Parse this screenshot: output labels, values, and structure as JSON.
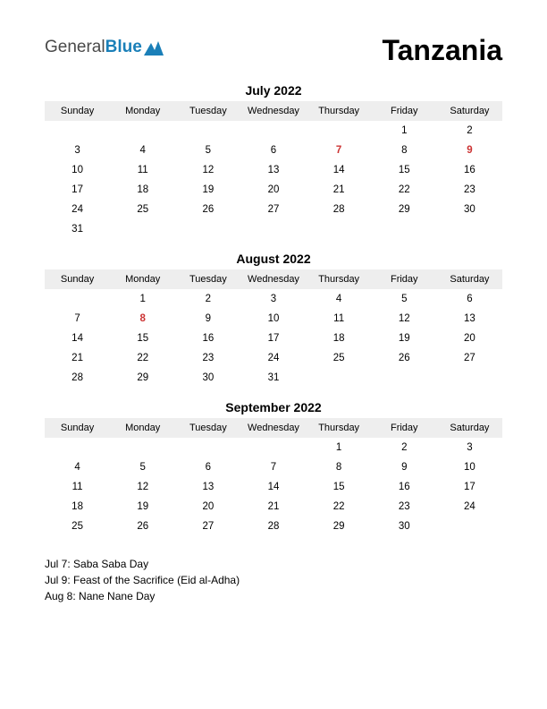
{
  "logo": {
    "part1": "General",
    "part2": "Blue"
  },
  "country": "Tanzania",
  "day_headers": [
    "Sunday",
    "Monday",
    "Tuesday",
    "Wednesday",
    "Thursday",
    "Friday",
    "Saturday"
  ],
  "months": [
    {
      "title": "July 2022",
      "weeks": [
        [
          {
            "d": ""
          },
          {
            "d": ""
          },
          {
            "d": ""
          },
          {
            "d": ""
          },
          {
            "d": ""
          },
          {
            "d": "1"
          },
          {
            "d": "2"
          }
        ],
        [
          {
            "d": "3"
          },
          {
            "d": "4"
          },
          {
            "d": "5"
          },
          {
            "d": "6"
          },
          {
            "d": "7",
            "h": true
          },
          {
            "d": "8"
          },
          {
            "d": "9",
            "h": true
          }
        ],
        [
          {
            "d": "10"
          },
          {
            "d": "11"
          },
          {
            "d": "12"
          },
          {
            "d": "13"
          },
          {
            "d": "14"
          },
          {
            "d": "15"
          },
          {
            "d": "16"
          }
        ],
        [
          {
            "d": "17"
          },
          {
            "d": "18"
          },
          {
            "d": "19"
          },
          {
            "d": "20"
          },
          {
            "d": "21"
          },
          {
            "d": "22"
          },
          {
            "d": "23"
          }
        ],
        [
          {
            "d": "24"
          },
          {
            "d": "25"
          },
          {
            "d": "26"
          },
          {
            "d": "27"
          },
          {
            "d": "28"
          },
          {
            "d": "29"
          },
          {
            "d": "30"
          }
        ],
        [
          {
            "d": "31"
          },
          {
            "d": ""
          },
          {
            "d": ""
          },
          {
            "d": ""
          },
          {
            "d": ""
          },
          {
            "d": ""
          },
          {
            "d": ""
          }
        ]
      ]
    },
    {
      "title": "August 2022",
      "weeks": [
        [
          {
            "d": ""
          },
          {
            "d": "1"
          },
          {
            "d": "2"
          },
          {
            "d": "3"
          },
          {
            "d": "4"
          },
          {
            "d": "5"
          },
          {
            "d": "6"
          }
        ],
        [
          {
            "d": "7"
          },
          {
            "d": "8",
            "h": true
          },
          {
            "d": "9"
          },
          {
            "d": "10"
          },
          {
            "d": "11"
          },
          {
            "d": "12"
          },
          {
            "d": "13"
          }
        ],
        [
          {
            "d": "14"
          },
          {
            "d": "15"
          },
          {
            "d": "16"
          },
          {
            "d": "17"
          },
          {
            "d": "18"
          },
          {
            "d": "19"
          },
          {
            "d": "20"
          }
        ],
        [
          {
            "d": "21"
          },
          {
            "d": "22"
          },
          {
            "d": "23"
          },
          {
            "d": "24"
          },
          {
            "d": "25"
          },
          {
            "d": "26"
          },
          {
            "d": "27"
          }
        ],
        [
          {
            "d": "28"
          },
          {
            "d": "29"
          },
          {
            "d": "30"
          },
          {
            "d": "31"
          },
          {
            "d": ""
          },
          {
            "d": ""
          },
          {
            "d": ""
          }
        ]
      ]
    },
    {
      "title": "September 2022",
      "weeks": [
        [
          {
            "d": ""
          },
          {
            "d": ""
          },
          {
            "d": ""
          },
          {
            "d": ""
          },
          {
            "d": "1"
          },
          {
            "d": "2"
          },
          {
            "d": "3"
          }
        ],
        [
          {
            "d": "4"
          },
          {
            "d": "5"
          },
          {
            "d": "6"
          },
          {
            "d": "7"
          },
          {
            "d": "8"
          },
          {
            "d": "9"
          },
          {
            "d": "10"
          }
        ],
        [
          {
            "d": "11"
          },
          {
            "d": "12"
          },
          {
            "d": "13"
          },
          {
            "d": "14"
          },
          {
            "d": "15"
          },
          {
            "d": "16"
          },
          {
            "d": "17"
          }
        ],
        [
          {
            "d": "18"
          },
          {
            "d": "19"
          },
          {
            "d": "20"
          },
          {
            "d": "21"
          },
          {
            "d": "22"
          },
          {
            "d": "23"
          },
          {
            "d": "24"
          }
        ],
        [
          {
            "d": "25"
          },
          {
            "d": "26"
          },
          {
            "d": "27"
          },
          {
            "d": "28"
          },
          {
            "d": "29"
          },
          {
            "d": "30"
          },
          {
            "d": ""
          }
        ]
      ]
    }
  ],
  "holidays": [
    "Jul 7: Saba Saba Day",
    "Jul 9: Feast of the Sacrifice (Eid al-Adha)",
    "Aug 8: Nane Nane Day"
  ]
}
